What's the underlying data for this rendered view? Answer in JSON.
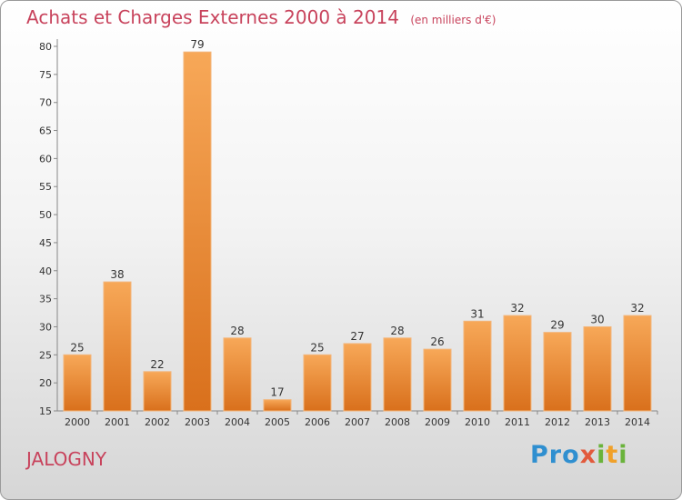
{
  "header": {
    "title": "Achats et Charges Externes 2000 à 2014",
    "subtitle": "(en milliers d'€)"
  },
  "footer": {
    "city": "JALOGNY",
    "logo": "Proxiti"
  },
  "colors": {
    "bar_light": "#f7a858",
    "bar_dark": "#d9701c",
    "title": "#c8435c"
  },
  "chart_data": {
    "type": "bar",
    "title": "Achats et Charges Externes 2000 à 2014",
    "categories": [
      "2000",
      "2001",
      "2002",
      "2003",
      "2004",
      "2005",
      "2006",
      "2007",
      "2008",
      "2009",
      "2010",
      "2011",
      "2012",
      "2013",
      "2014"
    ],
    "values": [
      25,
      38,
      22,
      79,
      28,
      17,
      25,
      27,
      28,
      26,
      31,
      32,
      29,
      30,
      32
    ],
    "ylim": [
      15,
      80
    ],
    "yticks": [
      15,
      20,
      25,
      30,
      35,
      40,
      45,
      50,
      55,
      60,
      65,
      70,
      75,
      80
    ],
    "grid": false,
    "legend": "none",
    "data_labels": true
  }
}
